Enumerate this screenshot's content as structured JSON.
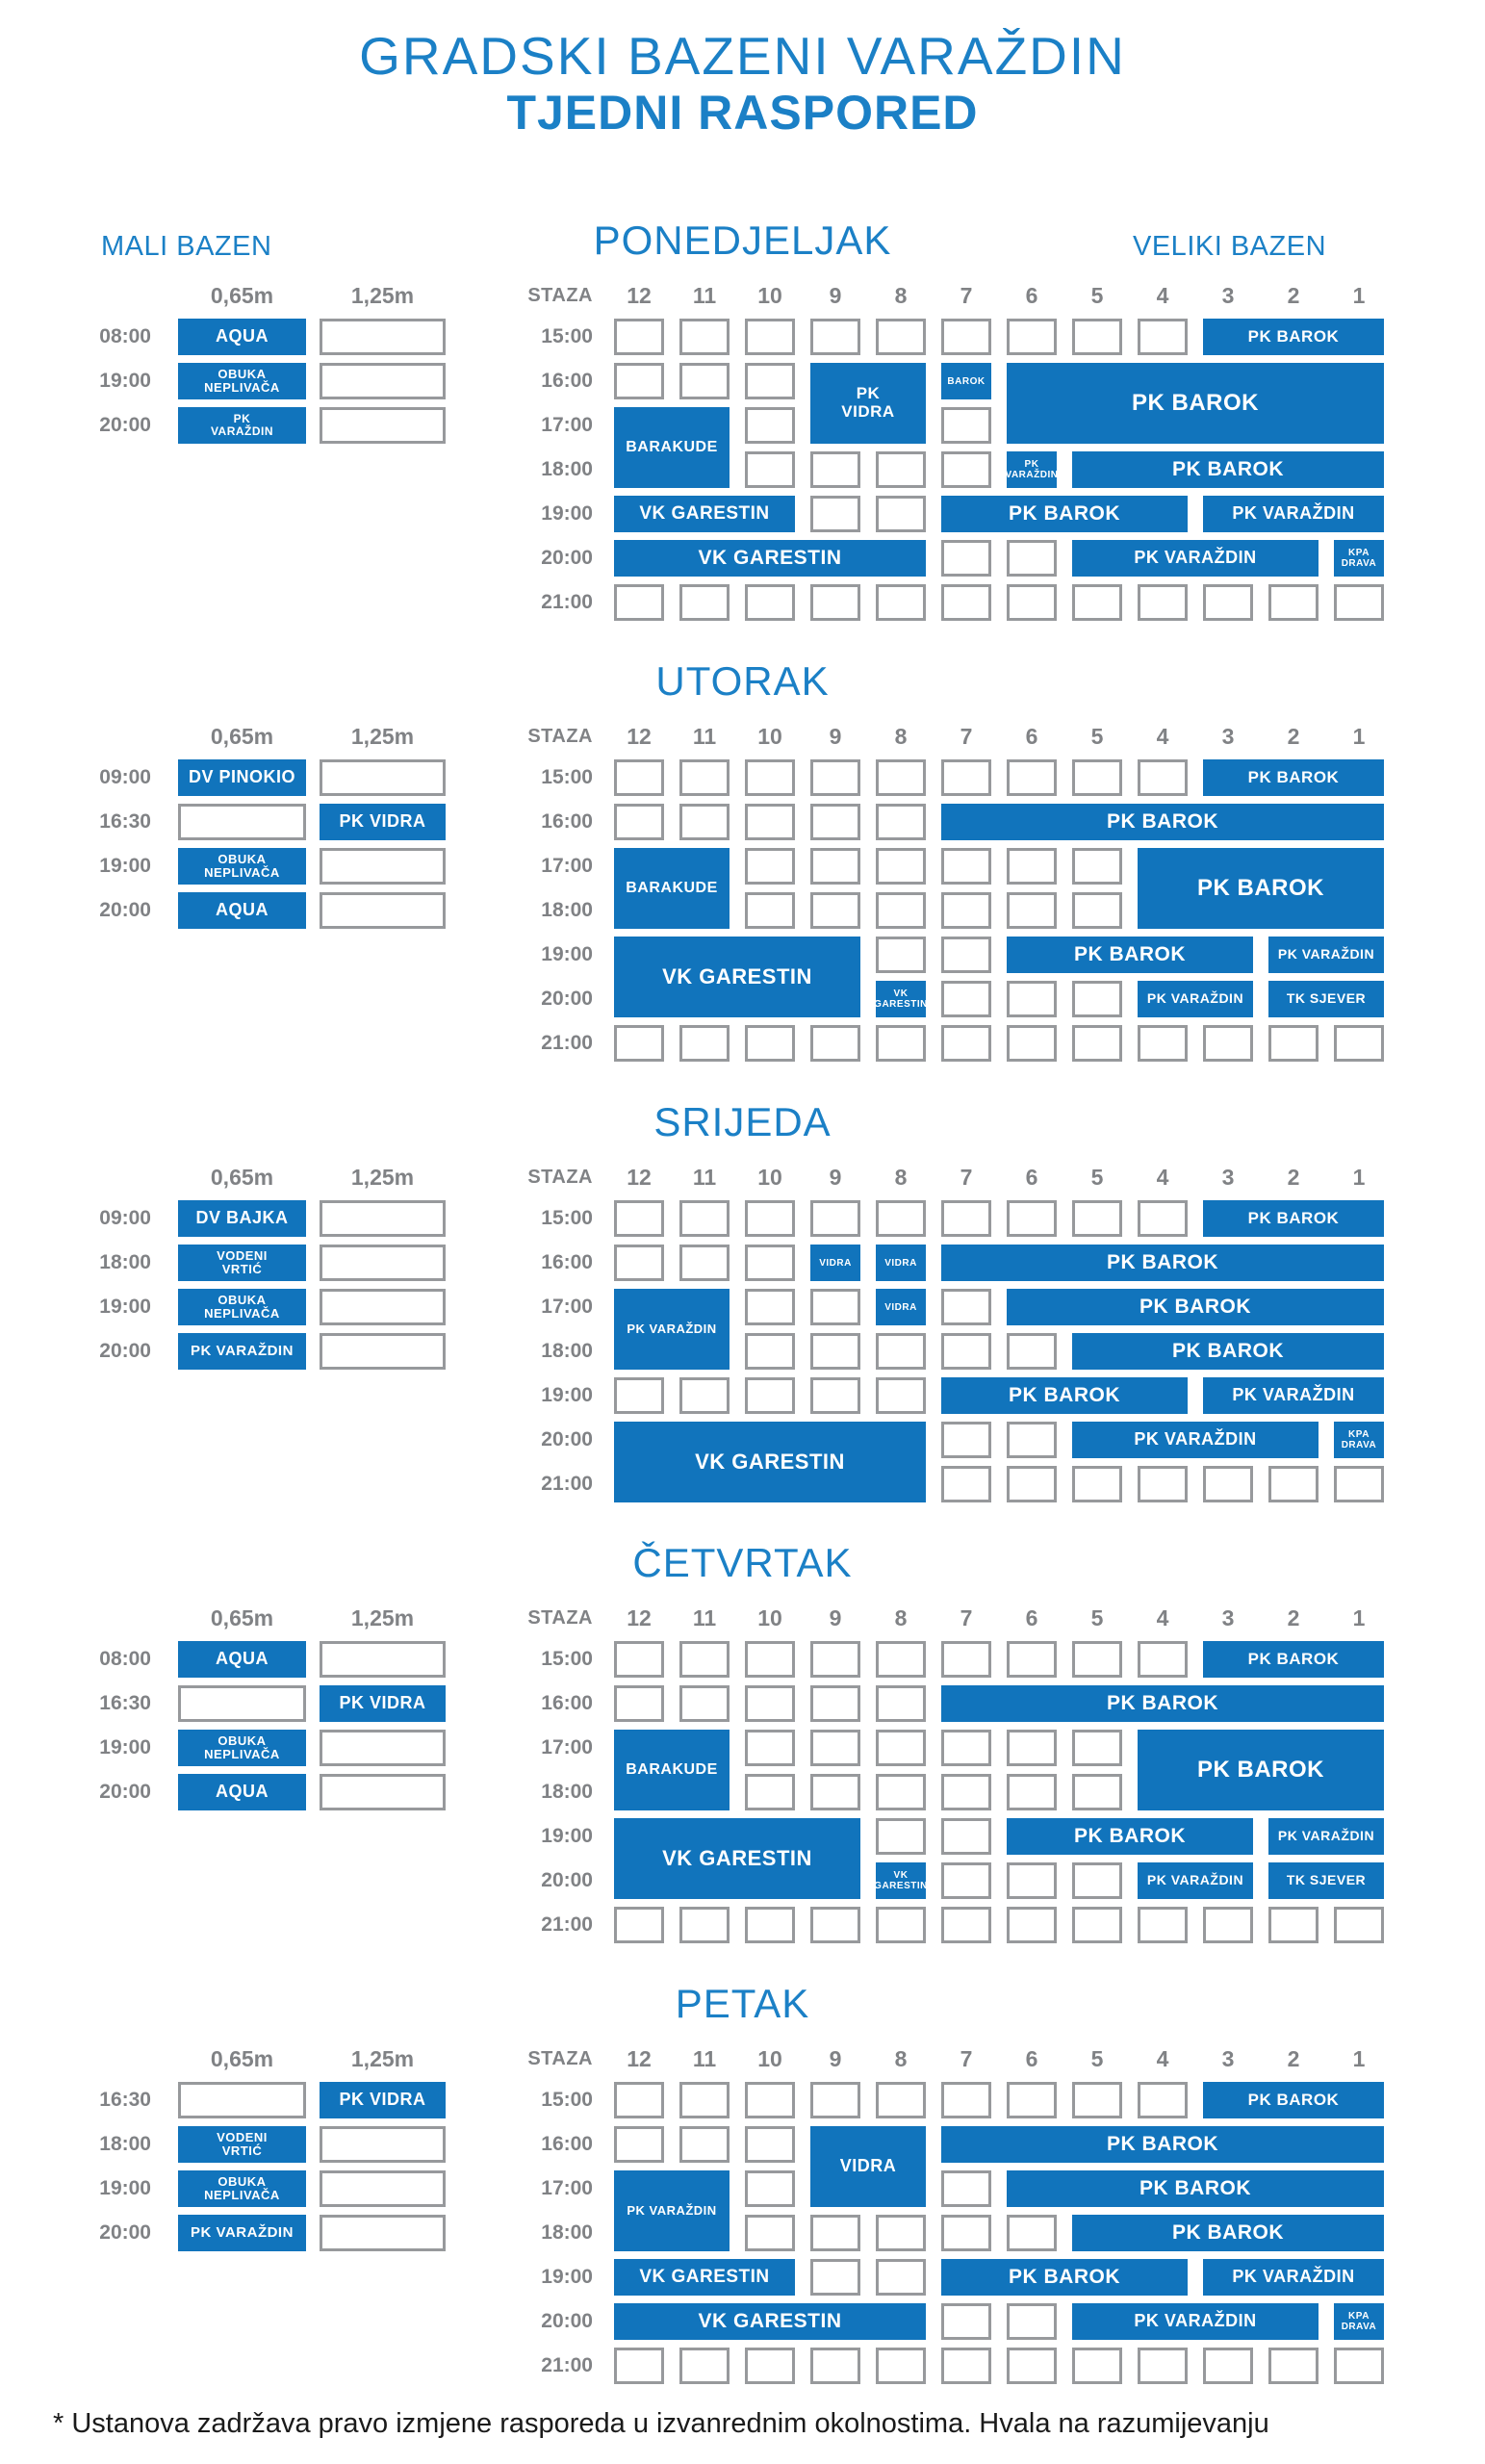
{
  "title": {
    "line1": "GRADSKI BAZENI VARAŽDIN",
    "line2": "TJEDNI RASPORED"
  },
  "pool_labels": {
    "small": "MALI BAZEN",
    "large": "VELIKI BAZEN"
  },
  "footnote": "* Ustanova zadržava pravo izmjene rasporeda u izvanrednim okolnostima. Hvala na razumijevanju",
  "colors": {
    "title_blue": "#1B80C6",
    "cell_blue": "#1174BC",
    "label_gray": "#808285",
    "border_gray": "#97999C"
  },
  "mali_headers": [
    "0,65m",
    "1,25m"
  ],
  "veliki_header": {
    "staza_label": "STAZA",
    "lanes": [
      "12",
      "11",
      "10",
      "9",
      "8",
      "7",
      "6",
      "5",
      "4",
      "3",
      "2",
      "1"
    ]
  },
  "times_veliki": [
    "15:00",
    "16:00",
    "17:00",
    "18:00",
    "19:00",
    "20:00",
    "21:00"
  ],
  "days": [
    {
      "name": "PONEDJELJAK",
      "mali_rows": [
        {
          "time": "08:00",
          "c065": {
            "label": "AQUA",
            "fs": 18
          },
          "c125": null
        },
        {
          "time": "19:00",
          "c065": {
            "label": "OBUKA\nNEPLIVAČA",
            "fs": 13
          },
          "c125": null
        },
        {
          "time": "20:00",
          "c065": {
            "label": "PK\nVARAŽDIN",
            "fs": 12
          },
          "c125": null
        }
      ],
      "veliki_blocks": [
        {
          "label": "PK BAROK",
          "row": 1,
          "lane_from": 3,
          "lane_to": 1,
          "fs": 17
        },
        {
          "label": "PK\nVIDRA",
          "row": 2,
          "rowspan": 2,
          "lane_from": 9,
          "lane_to": 8,
          "fs": 17
        },
        {
          "label": "BAROK",
          "row": 2,
          "lane_from": 7,
          "lane_to": 7,
          "fs": 10
        },
        {
          "label": "PK BAROK",
          "row": 2,
          "rowspan": 2,
          "lane_from": 6,
          "lane_to": 1,
          "fs": 24
        },
        {
          "label": "BARAKUDE",
          "row": 3,
          "rowspan": 2,
          "lane_from": 12,
          "lane_to": 11,
          "fs": 16
        },
        {
          "label": "PK\nVARAŽDIN",
          "row": 4,
          "lane_from": 6,
          "lane_to": 6,
          "fs": 10
        },
        {
          "label": "PK BAROK",
          "row": 4,
          "lane_from": 5,
          "lane_to": 1,
          "fs": 21
        },
        {
          "label": "VK GARESTIN",
          "row": 5,
          "lane_from": 12,
          "lane_to": 10,
          "fs": 19
        },
        {
          "label": "PK BAROK",
          "row": 5,
          "lane_from": 7,
          "lane_to": 4,
          "fs": 21
        },
        {
          "label": "PK VARAŽDIN",
          "row": 5,
          "lane_from": 3,
          "lane_to": 1,
          "fs": 18
        },
        {
          "label": "VK GARESTIN",
          "row": 6,
          "lane_from": 12,
          "lane_to": 8,
          "fs": 21
        },
        {
          "label": "PK VARAŽDIN",
          "row": 6,
          "lane_from": 5,
          "lane_to": 2,
          "fs": 18
        },
        {
          "label": "KPA\nDRAVA",
          "row": 6,
          "lane_from": 1,
          "lane_to": 1,
          "fs": 10
        }
      ],
      "veliki_empty": [
        {
          "row": 1,
          "lanes": [
            12,
            11,
            10,
            9,
            8,
            7,
            6,
            5,
            4
          ]
        },
        {
          "row": 2,
          "lanes": [
            12,
            11,
            10
          ]
        },
        {
          "row": 3,
          "lanes": [
            10,
            7
          ]
        },
        {
          "row": 4,
          "lanes": [
            10,
            9,
            8,
            7
          ]
        },
        {
          "row": 5,
          "lanes": [
            9,
            8
          ]
        },
        {
          "row": 6,
          "lanes": [
            7,
            6
          ]
        },
        {
          "row": 7,
          "lanes": [
            12,
            11,
            10,
            9,
            8,
            7,
            6,
            5,
            4,
            3,
            2,
            1
          ]
        }
      ]
    },
    {
      "name": "UTORAK",
      "mali_rows": [
        {
          "time": "09:00",
          "c065": {
            "label": "DV PINOKIO",
            "fs": 18
          },
          "c125": null
        },
        {
          "time": "16:30",
          "c065": null,
          "c125": {
            "label": "PK VIDRA",
            "fs": 18
          }
        },
        {
          "time": "19:00",
          "c065": {
            "label": "OBUKA\nNEPLIVAČA",
            "fs": 13
          },
          "c125": null
        },
        {
          "time": "20:00",
          "c065": {
            "label": "AQUA",
            "fs": 18
          },
          "c125": null
        }
      ],
      "veliki_blocks": [
        {
          "label": "PK BAROK",
          "row": 1,
          "lane_from": 3,
          "lane_to": 1,
          "fs": 17
        },
        {
          "label": "PK BAROK",
          "row": 2,
          "lane_from": 7,
          "lane_to": 1,
          "fs": 21
        },
        {
          "label": "BARAKUDE",
          "row": 3,
          "rowspan": 2,
          "lane_from": 12,
          "lane_to": 11,
          "fs": 16
        },
        {
          "label": "PK BAROK",
          "row": 3,
          "rowspan": 2,
          "lane_from": 4,
          "lane_to": 1,
          "fs": 24
        },
        {
          "label": "VK GARESTIN",
          "row": 5,
          "rowspan": 2,
          "lane_from": 12,
          "lane_to": 9,
          "fs": 22
        },
        {
          "label": "PK BAROK",
          "row": 5,
          "lane_from": 6,
          "lane_to": 3,
          "fs": 21
        },
        {
          "label": "PK VARAŽDIN",
          "row": 5,
          "lane_from": 2,
          "lane_to": 1,
          "fs": 14
        },
        {
          "label": "VK\nGARESTIN",
          "row": 6,
          "lane_from": 8,
          "lane_to": 8,
          "fs": 10
        },
        {
          "label": "PK VARAŽDIN",
          "row": 6,
          "lane_from": 4,
          "lane_to": 3,
          "fs": 14
        },
        {
          "label": "TK SJEVER",
          "row": 6,
          "lane_from": 2,
          "lane_to": 1,
          "fs": 14
        }
      ],
      "veliki_empty": [
        {
          "row": 1,
          "lanes": [
            12,
            11,
            10,
            9,
            8,
            7,
            6,
            5,
            4
          ]
        },
        {
          "row": 2,
          "lanes": [
            12,
            11,
            10,
            9,
            8
          ]
        },
        {
          "row": 3,
          "lanes": [
            10,
            9,
            8,
            7,
            6,
            5
          ]
        },
        {
          "row": 4,
          "lanes": [
            10,
            9,
            8,
            7,
            6,
            5
          ]
        },
        {
          "row": 5,
          "lanes": [
            8,
            7
          ]
        },
        {
          "row": 6,
          "lanes": [
            7,
            6,
            5
          ]
        },
        {
          "row": 7,
          "lanes": [
            12,
            11,
            10,
            9,
            8,
            7,
            6,
            5,
            4,
            3,
            2,
            1
          ]
        }
      ]
    },
    {
      "name": "SRIJEDA",
      "mali_rows": [
        {
          "time": "09:00",
          "c065": {
            "label": "DV BAJKA",
            "fs": 18
          },
          "c125": null
        },
        {
          "time": "18:00",
          "c065": {
            "label": "VODENI\nVRTIĆ",
            "fs": 13
          },
          "c125": null
        },
        {
          "time": "19:00",
          "c065": {
            "label": "OBUKA\nNEPLIVAČA",
            "fs": 13
          },
          "c125": null
        },
        {
          "time": "20:00",
          "c065": {
            "label": "PK VARAŽDIN",
            "fs": 15
          },
          "c125": null
        }
      ],
      "veliki_blocks": [
        {
          "label": "PK BAROK",
          "row": 1,
          "lane_from": 3,
          "lane_to": 1,
          "fs": 17
        },
        {
          "label": "VIDRA",
          "row": 2,
          "lane_from": 9,
          "lane_to": 9,
          "fs": 10
        },
        {
          "label": "VIDRA",
          "row": 2,
          "lane_from": 8,
          "lane_to": 8,
          "fs": 10
        },
        {
          "label": "PK BAROK",
          "row": 2,
          "lane_from": 7,
          "lane_to": 1,
          "fs": 21
        },
        {
          "label": "PK VARAŽDIN",
          "row": 3,
          "rowspan": 2,
          "lane_from": 12,
          "lane_to": 11,
          "fs": 13
        },
        {
          "label": "VIDRA",
          "row": 3,
          "lane_from": 8,
          "lane_to": 8,
          "fs": 10
        },
        {
          "label": "PK BAROK",
          "row": 3,
          "lane_from": 6,
          "lane_to": 1,
          "fs": 21
        },
        {
          "label": "PK BAROK",
          "row": 4,
          "lane_from": 5,
          "lane_to": 1,
          "fs": 21
        },
        {
          "label": "PK BAROK",
          "row": 5,
          "lane_from": 7,
          "lane_to": 4,
          "fs": 21
        },
        {
          "label": "PK VARAŽDIN",
          "row": 5,
          "lane_from": 3,
          "lane_to": 1,
          "fs": 18
        },
        {
          "label": "VK GARESTIN",
          "row": 6,
          "rowspan": 2,
          "lane_from": 12,
          "lane_to": 8,
          "fs": 22
        },
        {
          "label": "PK VARAŽDIN",
          "row": 6,
          "lane_from": 5,
          "lane_to": 2,
          "fs": 18
        },
        {
          "label": "KPA\nDRAVA",
          "row": 6,
          "lane_from": 1,
          "lane_to": 1,
          "fs": 10
        }
      ],
      "veliki_empty": [
        {
          "row": 1,
          "lanes": [
            12,
            11,
            10,
            9,
            8,
            7,
            6,
            5,
            4
          ]
        },
        {
          "row": 2,
          "lanes": [
            12,
            11,
            10
          ]
        },
        {
          "row": 3,
          "lanes": [
            10,
            9,
            7
          ]
        },
        {
          "row": 4,
          "lanes": [
            10,
            9,
            8,
            7,
            6
          ]
        },
        {
          "row": 5,
          "lanes": [
            12,
            11,
            10,
            9,
            8
          ]
        },
        {
          "row": 6,
          "lanes": [
            7,
            6
          ]
        },
        {
          "row": 7,
          "lanes": [
            7,
            6,
            5,
            4,
            3,
            2,
            1
          ]
        }
      ]
    },
    {
      "name": "ČETVRTAK",
      "mali_rows": [
        {
          "time": "08:00",
          "c065": {
            "label": "AQUA",
            "fs": 18
          },
          "c125": null
        },
        {
          "time": "16:30",
          "c065": null,
          "c125": {
            "label": "PK VIDRA",
            "fs": 18
          }
        },
        {
          "time": "19:00",
          "c065": {
            "label": "OBUKA\nNEPLIVAČA",
            "fs": 13
          },
          "c125": null
        },
        {
          "time": "20:00",
          "c065": {
            "label": "AQUA",
            "fs": 18
          },
          "c125": null
        }
      ],
      "veliki_blocks": [
        {
          "label": "PK BAROK",
          "row": 1,
          "lane_from": 3,
          "lane_to": 1,
          "fs": 17
        },
        {
          "label": "PK BAROK",
          "row": 2,
          "lane_from": 7,
          "lane_to": 1,
          "fs": 21
        },
        {
          "label": "BARAKUDE",
          "row": 3,
          "rowspan": 2,
          "lane_from": 12,
          "lane_to": 11,
          "fs": 16
        },
        {
          "label": "PK BAROK",
          "row": 3,
          "rowspan": 2,
          "lane_from": 4,
          "lane_to": 1,
          "fs": 24
        },
        {
          "label": "VK GARESTIN",
          "row": 5,
          "rowspan": 2,
          "lane_from": 12,
          "lane_to": 9,
          "fs": 22
        },
        {
          "label": "PK BAROK",
          "row": 5,
          "lane_from": 6,
          "lane_to": 3,
          "fs": 21
        },
        {
          "label": "PK VARAŽDIN",
          "row": 5,
          "lane_from": 2,
          "lane_to": 1,
          "fs": 14
        },
        {
          "label": "VK\nGARESTIN",
          "row": 6,
          "lane_from": 8,
          "lane_to": 8,
          "fs": 10
        },
        {
          "label": "PK VARAŽDIN",
          "row": 6,
          "lane_from": 4,
          "lane_to": 3,
          "fs": 14
        },
        {
          "label": "TK SJEVER",
          "row": 6,
          "lane_from": 2,
          "lane_to": 1,
          "fs": 14
        }
      ],
      "veliki_empty": [
        {
          "row": 1,
          "lanes": [
            12,
            11,
            10,
            9,
            8,
            7,
            6,
            5,
            4
          ]
        },
        {
          "row": 2,
          "lanes": [
            12,
            11,
            10,
            9,
            8
          ]
        },
        {
          "row": 3,
          "lanes": [
            10,
            9,
            8,
            7,
            6,
            5
          ]
        },
        {
          "row": 4,
          "lanes": [
            10,
            9,
            8,
            7,
            6,
            5
          ]
        },
        {
          "row": 5,
          "lanes": [
            8,
            7
          ]
        },
        {
          "row": 6,
          "lanes": [
            7,
            6,
            5
          ]
        },
        {
          "row": 7,
          "lanes": [
            12,
            11,
            10,
            9,
            8,
            7,
            6,
            5,
            4,
            3,
            2,
            1
          ]
        }
      ]
    },
    {
      "name": "PETAK",
      "mali_rows": [
        {
          "time": "16:30",
          "c065": null,
          "c125": {
            "label": "PK VIDRA",
            "fs": 18
          }
        },
        {
          "time": "18:00",
          "c065": {
            "label": "VODENI\nVRTIĆ",
            "fs": 13
          },
          "c125": null
        },
        {
          "time": "19:00",
          "c065": {
            "label": "OBUKA\nNEPLIVAČA",
            "fs": 13
          },
          "c125": null
        },
        {
          "time": "20:00",
          "c065": {
            "label": "PK VARAŽDIN",
            "fs": 15
          },
          "c125": null
        }
      ],
      "veliki_blocks": [
        {
          "label": "PK BAROK",
          "row": 1,
          "lane_from": 3,
          "lane_to": 1,
          "fs": 17
        },
        {
          "label": "VIDRA",
          "row": 2,
          "rowspan": 2,
          "lane_from": 9,
          "lane_to": 8,
          "fs": 18
        },
        {
          "label": "PK BAROK",
          "row": 2,
          "lane_from": 7,
          "lane_to": 1,
          "fs": 21
        },
        {
          "label": "PK VARAŽDIN",
          "row": 3,
          "rowspan": 2,
          "lane_from": 12,
          "lane_to": 11,
          "fs": 13
        },
        {
          "label": "PK BAROK",
          "row": 3,
          "lane_from": 6,
          "lane_to": 1,
          "fs": 21
        },
        {
          "label": "PK BAROK",
          "row": 4,
          "lane_from": 5,
          "lane_to": 1,
          "fs": 21
        },
        {
          "label": "VK GARESTIN",
          "row": 5,
          "lane_from": 12,
          "lane_to": 10,
          "fs": 19
        },
        {
          "label": "PK BAROK",
          "row": 5,
          "lane_from": 7,
          "lane_to": 4,
          "fs": 21
        },
        {
          "label": "PK VARAŽDIN",
          "row": 5,
          "lane_from": 3,
          "lane_to": 1,
          "fs": 18
        },
        {
          "label": "VK GARESTIN",
          "row": 6,
          "lane_from": 12,
          "lane_to": 8,
          "fs": 21
        },
        {
          "label": "PK VARAŽDIN",
          "row": 6,
          "lane_from": 5,
          "lane_to": 2,
          "fs": 18
        },
        {
          "label": "KPA\nDRAVA",
          "row": 6,
          "lane_from": 1,
          "lane_to": 1,
          "fs": 10
        }
      ],
      "veliki_empty": [
        {
          "row": 1,
          "lanes": [
            12,
            11,
            10,
            9,
            8,
            7,
            6,
            5,
            4
          ]
        },
        {
          "row": 2,
          "lanes": [
            12,
            11,
            10
          ]
        },
        {
          "row": 3,
          "lanes": [
            10,
            7
          ]
        },
        {
          "row": 4,
          "lanes": [
            10,
            9,
            8,
            7,
            6
          ]
        },
        {
          "row": 5,
          "lanes": [
            9,
            8
          ]
        },
        {
          "row": 6,
          "lanes": [
            7,
            6
          ]
        },
        {
          "row": 7,
          "lanes": [
            12,
            11,
            10,
            9,
            8,
            7,
            6,
            5,
            4,
            3,
            2,
            1
          ]
        }
      ]
    }
  ]
}
